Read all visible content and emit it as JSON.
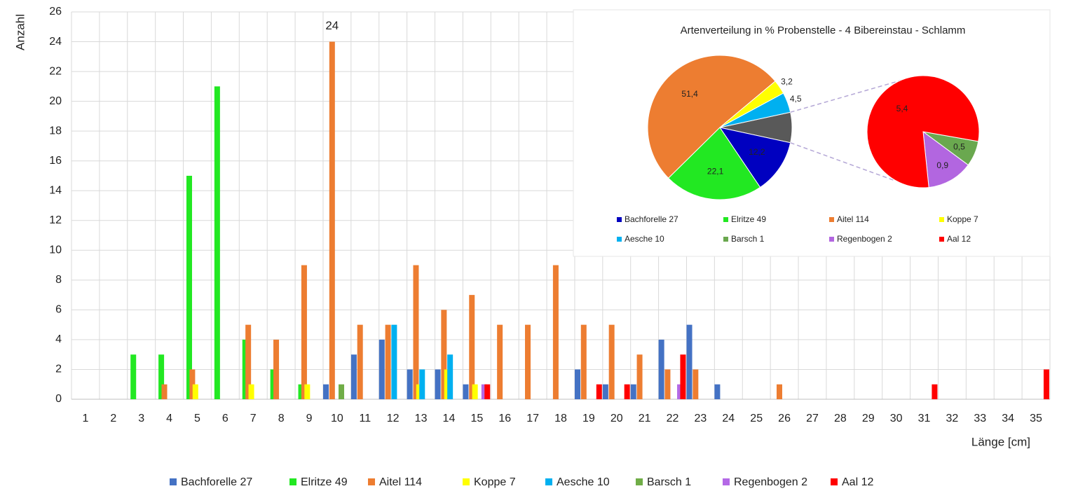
{
  "chart_data": [
    {
      "type": "bar",
      "y_label": "Anzahl",
      "x_label": "Länge [cm]",
      "categories": [
        "1",
        "2",
        "3",
        "4",
        "5",
        "6",
        "7",
        "8",
        "9",
        "10",
        "11",
        "12",
        "13",
        "14",
        "15",
        "16",
        "17",
        "18",
        "19",
        "20",
        "21",
        "22",
        "23",
        "24",
        "25",
        "26",
        "27",
        "28",
        "29",
        "30",
        "31",
        "32",
        "33",
        "34",
        "35"
      ],
      "ylim": [
        0,
        26
      ],
      "yticks": [
        0,
        2,
        4,
        6,
        8,
        10,
        12,
        14,
        16,
        18,
        20,
        22,
        24,
        26
      ],
      "grid": true,
      "legend": "bottom",
      "series": [
        {
          "name": "Bachforelle 27",
          "color": "#4472c4",
          "values": [
            0,
            0,
            0,
            0,
            0,
            0,
            0,
            0,
            0,
            1,
            3,
            4,
            2,
            2,
            1,
            0,
            0,
            0,
            2,
            1,
            1,
            4,
            5,
            1,
            0,
            0,
            0,
            0,
            0,
            0,
            0,
            0,
            0,
            0,
            0
          ]
        },
        {
          "name": "Elritze 49",
          "color": "#22e822",
          "values": [
            0,
            0,
            3,
            3,
            15,
            21,
            4,
            2,
            1,
            0,
            0,
            0,
            0,
            0,
            0,
            0,
            0,
            0,
            0,
            0,
            0,
            0,
            0,
            0,
            0,
            0,
            0,
            0,
            0,
            0,
            0,
            0,
            0,
            0,
            0
          ]
        },
        {
          "name": "Aitel 114",
          "color": "#ed7d31",
          "values": [
            0,
            0,
            0,
            1,
            2,
            0,
            5,
            4,
            9,
            24,
            5,
            5,
            9,
            6,
            7,
            5,
            5,
            9,
            5,
            5,
            3,
            2,
            2,
            0,
            0,
            1,
            0,
            0,
            0,
            0,
            0,
            0,
            0,
            0,
            0
          ]
        },
        {
          "name": "Koppe 7",
          "color": "#ffff00",
          "values": [
            0,
            0,
            0,
            0,
            1,
            0,
            1,
            0,
            1,
            0,
            0,
            0,
            1,
            2,
            1,
            0,
            0,
            0,
            0,
            0,
            0,
            0,
            0,
            0,
            0,
            0,
            0,
            0,
            0,
            0,
            0,
            0,
            0,
            0,
            0
          ]
        },
        {
          "name": "Aesche 10",
          "color": "#00b0f0",
          "values": [
            0,
            0,
            0,
            0,
            0,
            0,
            0,
            0,
            0,
            0,
            0,
            5,
            2,
            3,
            0,
            0,
            0,
            0,
            0,
            0,
            0,
            0,
            0,
            0,
            0,
            0,
            0,
            0,
            0,
            0,
            0,
            0,
            0,
            0,
            0
          ]
        },
        {
          "name": "Barsch 1",
          "color": "#70ad47",
          "values": [
            0,
            0,
            0,
            0,
            0,
            0,
            0,
            0,
            0,
            1,
            0,
            0,
            0,
            0,
            0,
            0,
            0,
            0,
            0,
            0,
            0,
            0,
            0,
            0,
            0,
            0,
            0,
            0,
            0,
            0,
            0,
            0,
            0,
            0,
            0
          ]
        },
        {
          "name": "Regenbogen 2",
          "color": "#b469e6",
          "values": [
            0,
            0,
            0,
            0,
            0,
            0,
            0,
            0,
            0,
            0,
            0,
            0,
            0,
            0,
            1,
            0,
            0,
            0,
            0,
            0,
            0,
            1,
            0,
            0,
            0,
            0,
            0,
            0,
            0,
            0,
            0,
            0,
            0,
            0,
            0
          ]
        },
        {
          "name": "Aal 12",
          "color": "#ff0000",
          "values": [
            0,
            0,
            0,
            0,
            0,
            0,
            0,
            0,
            0,
            0,
            0,
            0,
            0,
            0,
            1,
            0,
            0,
            0,
            1,
            1,
            0,
            3,
            0,
            0,
            0,
            0,
            0,
            0,
            0,
            0,
            1,
            0,
            0,
            0,
            2
          ]
        }
      ]
    },
    {
      "type": "pie",
      "title": "Artenverteilung in % Probenstelle - 4  Bibereinstau - Schlamm",
      "categories": [
        "Bachforelle 27",
        "Elritze 49",
        "Aitel 114",
        "Koppe 7",
        "Aesche 10",
        "Barsch 1",
        "Regenbogen 2",
        "Aal 12"
      ],
      "values": [
        12.2,
        22.1,
        51.4,
        3.2,
        4.5,
        0.5,
        0.9,
        5.4
      ],
      "value_labels": [
        "12,2",
        "22,1",
        "51,4",
        "3,2",
        "4,5",
        "0,5",
        "0,9",
        "5,4"
      ],
      "colors": [
        "#0000c0",
        "#22e822",
        "#ed7d31",
        "#ffff00",
        "#00b0f0",
        "#6aa84f",
        "#b266e0",
        "#ff0000"
      ],
      "other_color": "#595959",
      "secondary_count": 3
    }
  ]
}
